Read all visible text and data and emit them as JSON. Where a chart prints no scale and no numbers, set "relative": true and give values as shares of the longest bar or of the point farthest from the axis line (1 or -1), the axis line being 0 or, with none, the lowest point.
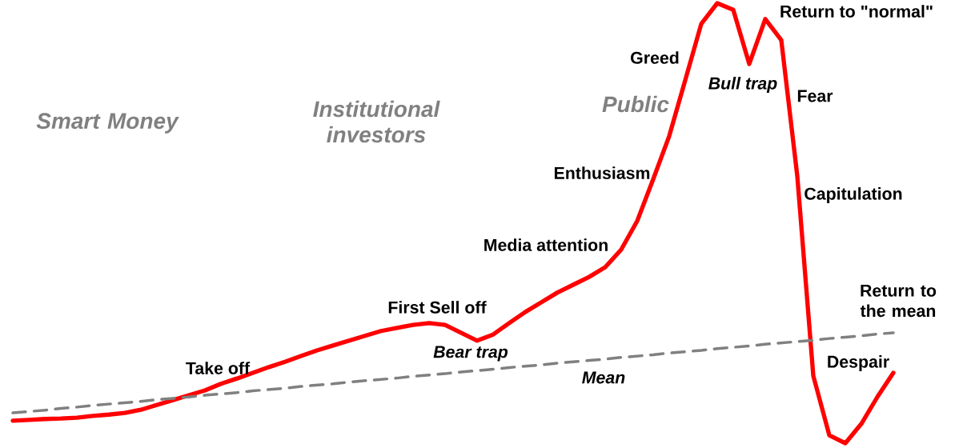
{
  "chart_data": {
    "type": "line",
    "relative": true,
    "categories": [
      null,
      null,
      null,
      null,
      null,
      null,
      null,
      null,
      null,
      null,
      null,
      null,
      null,
      null,
      null,
      null,
      null,
      null,
      null,
      null,
      null,
      null,
      null,
      null,
      null,
      null,
      null,
      null,
      null,
      null,
      null,
      null,
      null,
      null,
      null,
      null,
      null,
      null,
      null,
      null,
      null,
      null,
      null,
      null,
      null,
      null,
      null,
      null,
      null,
      null,
      null,
      null,
      null,
      null,
      null,
      null
    ],
    "series": [
      {
        "color": "#ff0000",
        "line_style": "solid",
        "values": [
          0.051,
          0.053,
          0.055,
          0.056,
          0.058,
          0.062,
          0.065,
          0.069,
          0.076,
          0.087,
          0.098,
          0.109,
          0.12,
          0.135,
          0.147,
          0.16,
          0.173,
          0.185,
          0.198,
          0.211,
          0.222,
          0.233,
          0.244,
          0.255,
          0.262,
          0.269,
          0.273,
          0.269,
          0.251,
          0.233,
          0.247,
          0.273,
          0.298,
          0.32,
          0.342,
          0.36,
          0.378,
          0.4,
          0.44,
          0.505,
          0.6,
          0.698,
          0.825,
          0.953,
          1.0,
          0.985,
          0.862,
          0.964,
          0.916,
          0.607,
          0.153,
          0.018,
          0.0,
          0.044,
          0.105,
          0.16
        ]
      },
      {
        "color": "#808080",
        "line_style": "dashed",
        "values": [
          0.069,
          0.072,
          0.075,
          0.079,
          0.082,
          0.086,
          0.089,
          0.092,
          0.095,
          0.099,
          0.102,
          0.105,
          0.109,
          0.112,
          0.115,
          0.119,
          0.122,
          0.125,
          0.129,
          0.132,
          0.135,
          0.139,
          0.142,
          0.145,
          0.148,
          0.152,
          0.155,
          0.158,
          0.162,
          0.165,
          0.168,
          0.172,
          0.175,
          0.178,
          0.182,
          0.185,
          0.188,
          0.191,
          0.195,
          0.198,
          0.201,
          0.205,
          0.208,
          0.211,
          0.215,
          0.218,
          0.221,
          0.225,
          0.228,
          0.231,
          0.234,
          0.238,
          0.241,
          0.244,
          0.248,
          0.251
        ]
      }
    ],
    "annotations": [
      "Smart Money",
      "Institutional investors",
      "Public",
      "Take off",
      "First Sell off",
      "Bear trap",
      "Media attention",
      "Enthusiasm",
      "Greed",
      "Bull trap",
      "Return to \"normal\"",
      "Fear",
      "Capitulation",
      "Return to the mean",
      "Despair",
      "Mean"
    ]
  }
}
